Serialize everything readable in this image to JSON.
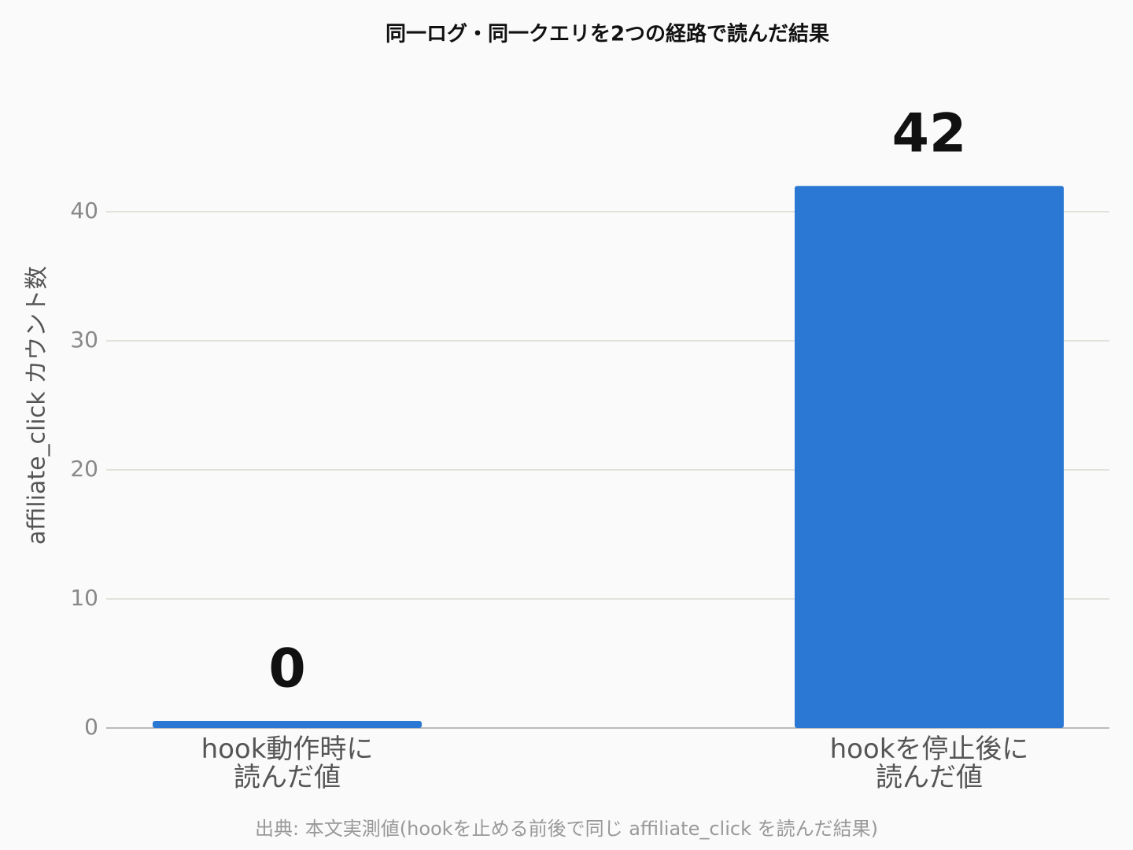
{
  "chart_data": {
    "type": "bar",
    "title": "同一ログ・同一クエリを2つの経路で読んだ結果",
    "y_label": "affiliate_click カウント数",
    "source": "出典: 本文実測値(hookを止める前後で同じ affiliate_click を読んだ結果)",
    "categories": [
      "hook動作時に\n読んだ値",
      "hookを停止後に\n読んだ値"
    ],
    "values": [
      0,
      42
    ],
    "color": "#2a78d4",
    "ylim": [
      0,
      45
    ],
    "yticks": [
      0,
      10,
      20,
      30,
      40
    ],
    "grid": true
  }
}
